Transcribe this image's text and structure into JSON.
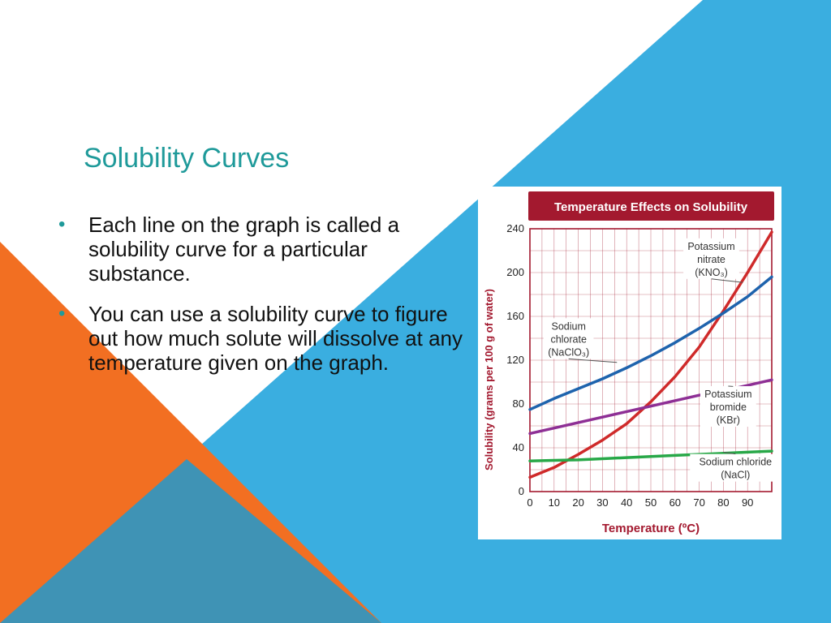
{
  "slide": {
    "title": "Solubility Curves",
    "bullets": [
      "Each line on the graph is called a solubility curve for a particular substance.",
      "You can use a solubility curve to figure out how much solute will dissolve at any temperature given on the graph."
    ],
    "bullet_glyph": "•"
  },
  "colors": {
    "accent_teal": "#1f9a9a",
    "orange": "#f26f22",
    "blue": "#3aaee0",
    "steel": "#3f93b5",
    "chart_header": "#a3192f",
    "axis_text": "#a3192f",
    "grid": "#a3192f"
  },
  "chart_data": {
    "type": "line",
    "title": "Temperature Effects on Solubility",
    "xlabel": "Temperature (ºC)",
    "ylabel": "Solubility (grams per 100 g of water)",
    "xlim": [
      0,
      100
    ],
    "ylim": [
      0,
      240
    ],
    "xticks": [
      0,
      10,
      20,
      30,
      40,
      50,
      60,
      70,
      80,
      90
    ],
    "yticks": [
      0,
      40,
      80,
      120,
      160,
      200,
      240
    ],
    "grid": true,
    "series": [
      {
        "name": "Potassium nitrate (KNO₃)",
        "label_lines": [
          "Potassium",
          "nitrate",
          "(KNO₃)"
        ],
        "color": "#cf2a2a",
        "x": [
          0,
          10,
          20,
          30,
          40,
          50,
          60,
          70,
          80,
          90,
          100
        ],
        "y": [
          13,
          22,
          34,
          47,
          62,
          82,
          105,
          132,
          165,
          200,
          237
        ]
      },
      {
        "name": "Sodium chlorate (NaClO₃)",
        "label_lines": [
          "Sodium",
          "chlorate",
          "(NaClO₃)"
        ],
        "color": "#1e63ad",
        "x": [
          0,
          10,
          20,
          30,
          40,
          50,
          60,
          70,
          80,
          90,
          100
        ],
        "y": [
          75,
          85,
          94,
          103,
          113,
          124,
          136,
          149,
          163,
          178,
          196
        ]
      },
      {
        "name": "Potassium bromide (KBr)",
        "label_lines": [
          "Potassium",
          "bromide",
          "(KBr)"
        ],
        "color": "#8e2f95",
        "x": [
          0,
          10,
          20,
          30,
          40,
          50,
          60,
          70,
          80,
          90,
          100
        ],
        "y": [
          53,
          58,
          63,
          68,
          73,
          78,
          83,
          88,
          92,
          97,
          102
        ]
      },
      {
        "name": "Sodium chloride (NaCl)",
        "label_lines": [
          "Sodium chloride",
          "(NaCl)"
        ],
        "color": "#28a848",
        "x": [
          0,
          10,
          20,
          30,
          40,
          50,
          60,
          70,
          80,
          90,
          100
        ],
        "y": [
          28,
          28.5,
          29,
          30,
          31,
          32,
          33,
          34,
          35,
          36,
          37
        ]
      }
    ]
  }
}
